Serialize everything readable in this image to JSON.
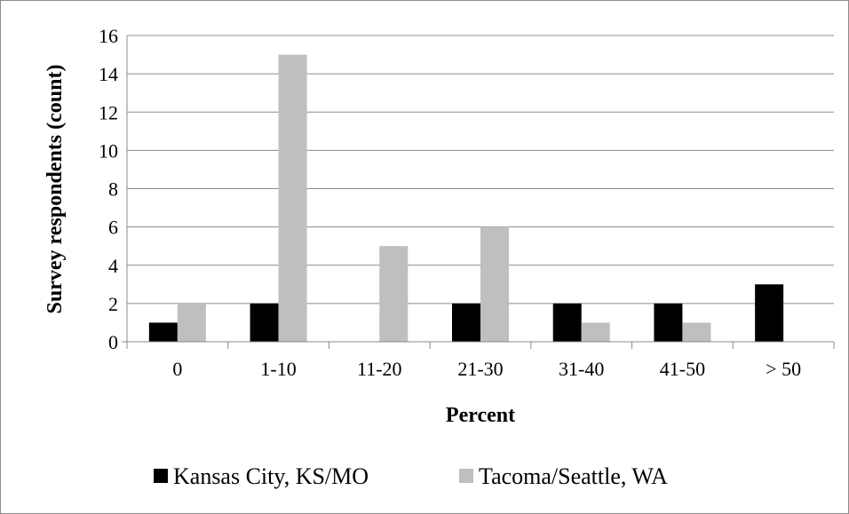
{
  "chart_data": {
    "type": "bar",
    "title": "",
    "xlabel": "Percent",
    "ylabel": "Survey respondents (count)",
    "categories": [
      "0",
      "1-10",
      "11-20",
      "21-30",
      "31-40",
      "41-50",
      "> 50"
    ],
    "series": [
      {
        "name": "Kansas City, KS/MO",
        "values": [
          1,
          2,
          0,
          2,
          2,
          2,
          3
        ],
        "color": "#000000"
      },
      {
        "name": "Tacoma/Seattle, WA",
        "values": [
          2,
          15,
          5,
          6,
          1,
          1,
          0
        ],
        "color": "#bfbfbf"
      }
    ],
    "ylim": [
      0,
      16
    ],
    "yticks": [
      "0",
      "2",
      "4",
      "6",
      "8",
      "10",
      "12",
      "14",
      "16"
    ],
    "grid": true,
    "legend_position": "bottom"
  }
}
